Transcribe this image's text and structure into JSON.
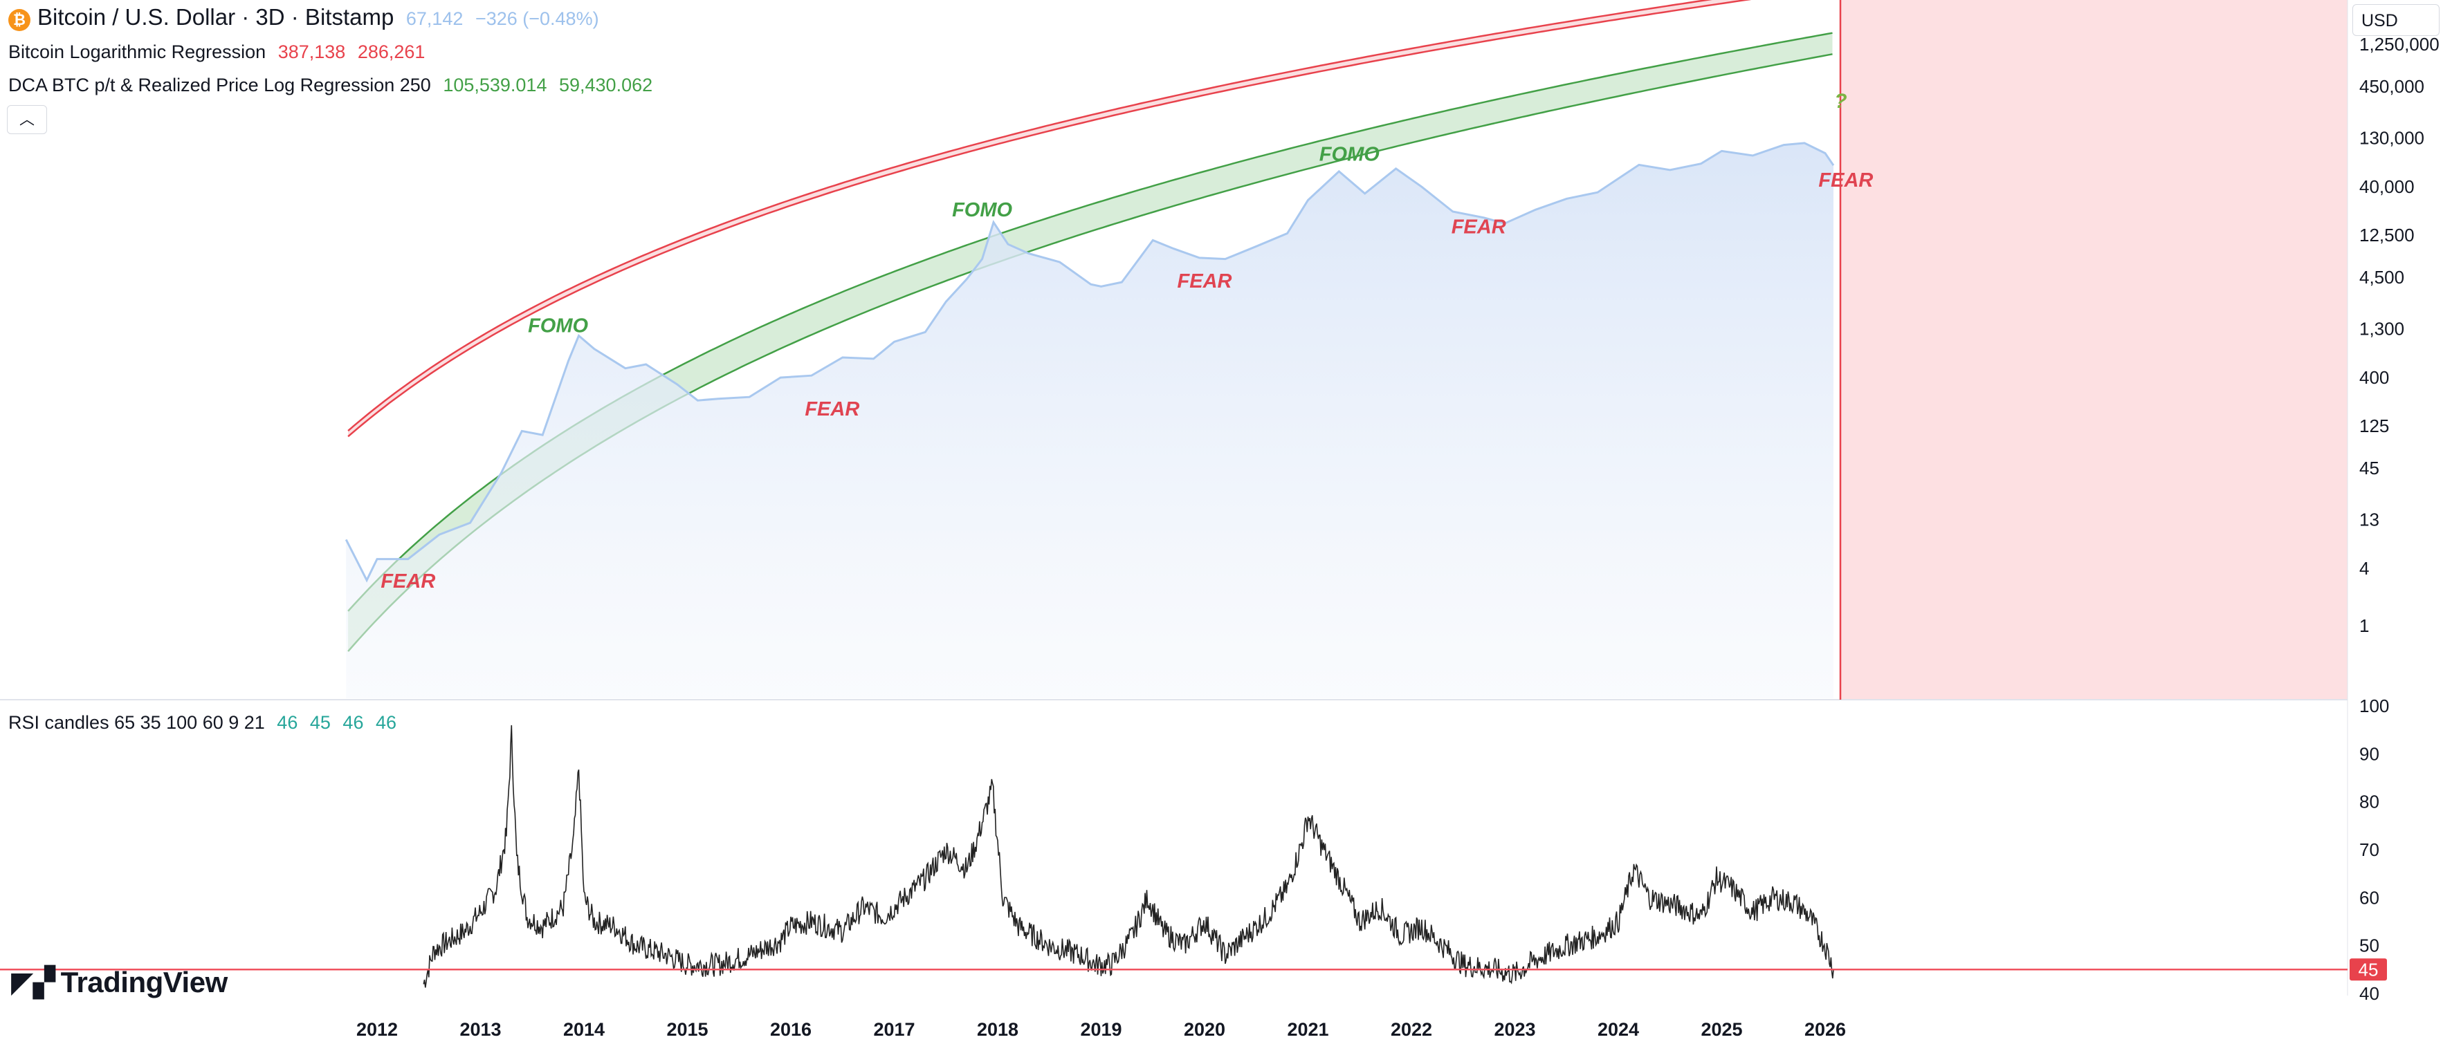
{
  "legend": {
    "title": "Bitcoin / U.S. Dollar · 3D · Bitstamp",
    "price": "67,142",
    "change": "−326 (−0.48%)",
    "indicators": [
      {
        "name": "Bitcoin Logarithmic Regression",
        "values": [
          "387,138",
          "286,261"
        ],
        "color": "#e8424c"
      },
      {
        "name": "DCA BTC p/t & Realized Price Log Regression 250",
        "values": [
          "105,539.014",
          "59,430.062"
        ],
        "color": "#43a047"
      }
    ],
    "rsi": {
      "name": "RSI candles 65 35 100 60 9 21",
      "values": [
        "46",
        "45",
        "46",
        "46"
      ]
    },
    "collapse_icon": "chevron-up-icon"
  },
  "currency_button": "USD",
  "brand": "TradingView",
  "chart_data": [
    {
      "type": "area",
      "title": "Bitcoin / U.S. Dollar · 3D · Bitstamp",
      "scale": "log",
      "y_ticks": [
        "1,250,000",
        "450,000",
        "130,000",
        "40,000",
        "12,500",
        "4,500",
        "1,300",
        "400",
        "125",
        "45",
        "13",
        "4",
        "1"
      ],
      "x_ticks": [
        "2012",
        "2013",
        "2014",
        "2015",
        "2016",
        "2017",
        "2018",
        "2019",
        "2020",
        "2021",
        "2022",
        "2023",
        "2024",
        "2025",
        "2026"
      ],
      "series": [
        {
          "name": "BTC price",
          "x": [
            2011.7,
            2011.9,
            2012.0,
            2012.3,
            2012.6,
            2012.9,
            2013.2,
            2013.4,
            2013.6,
            2013.85,
            2013.95,
            2014.1,
            2014.4,
            2014.6,
            2014.9,
            2015.1,
            2015.3,
            2015.6,
            2015.9,
            2016.2,
            2016.5,
            2016.8,
            2017.0,
            2017.3,
            2017.5,
            2017.7,
            2017.85,
            2017.96,
            2018.1,
            2018.3,
            2018.6,
            2018.9,
            2019.0,
            2019.2,
            2019.5,
            2019.7,
            2019.95,
            2020.2,
            2020.5,
            2020.8,
            2021.0,
            2021.3,
            2021.55,
            2021.85,
            2022.1,
            2022.4,
            2022.7,
            2022.9,
            2023.2,
            2023.5,
            2023.8,
            2024.2,
            2024.5,
            2024.8,
            2025.0,
            2025.3,
            2025.6,
            2025.8,
            2026.0,
            2026.08
          ],
          "values": [
            8,
            3,
            5,
            5,
            9,
            12,
            40,
            110,
            100,
            600,
            1100,
            800,
            500,
            550,
            340,
            230,
            240,
            250,
            400,
            420,
            650,
            630,
            950,
            1200,
            2500,
            4300,
            7000,
            17000,
            10000,
            8000,
            6500,
            3800,
            3600,
            4000,
            11000,
            9000,
            7200,
            7000,
            9500,
            13000,
            29000,
            58000,
            34000,
            62000,
            40000,
            22000,
            19000,
            16500,
            23000,
            30000,
            35000,
            68000,
            60000,
            70000,
            95000,
            85000,
            110000,
            115000,
            90000,
            67142
          ]
        },
        {
          "name": "Bitcoin Logarithmic Regression",
          "values": [
            "387,138",
            "286,261"
          ]
        },
        {
          "name": "DCA BTC p/t & Realized Price Log Regression 250",
          "values": [
            "105,539.014",
            "59,430.062"
          ]
        }
      ],
      "annotations": [
        {
          "text": "FEAR",
          "x": 2012.3,
          "y": 2.5
        },
        {
          "text": "FOMO",
          "x": 2013.75,
          "y": 1200
        },
        {
          "text": "FEAR",
          "x": 2016.4,
          "y": 160
        },
        {
          "text": "FOMO",
          "x": 2017.85,
          "y": 19500
        },
        {
          "text": "FEAR",
          "x": 2020.0,
          "y": 3500
        },
        {
          "text": "FOMO",
          "x": 2021.4,
          "y": 75000
        },
        {
          "text": "FEAR",
          "x": 2022.65,
          "y": 13000
        },
        {
          "text": "?",
          "x": 2026.15,
          "y": 270000
        },
        {
          "text": "FEAR",
          "x": 2026.2,
          "y": 40000
        }
      ]
    },
    {
      "type": "line",
      "title": "RSI candles 65 35 100 60 9 21",
      "ylim": [
        40,
        100
      ],
      "y_ticks": [
        "100",
        "90",
        "80",
        "70",
        "60",
        "50",
        "40"
      ],
      "hline": 45,
      "last_value": "45",
      "series": [
        {
          "name": "RSI",
          "x": [
            2012.45,
            2012.55,
            2012.7,
            2012.85,
            2013.0,
            2013.15,
            2013.25,
            2013.3,
            2013.35,
            2013.45,
            2013.6,
            2013.8,
            2013.9,
            2013.95,
            2014.0,
            2014.1,
            2014.3,
            2014.5,
            2014.8,
            2015.0,
            2015.3,
            2015.6,
            2015.9,
            2016.0,
            2016.2,
            2016.5,
            2016.7,
            2016.9,
            2017.1,
            2017.3,
            2017.5,
            2017.7,
            2017.8,
            2017.95,
            2018.05,
            2018.2,
            2018.5,
            2018.8,
            2018.95,
            2019.1,
            2019.3,
            2019.45,
            2019.6,
            2019.8,
            2020.0,
            2020.2,
            2020.4,
            2020.6,
            2020.8,
            2020.95,
            2021.0,
            2021.15,
            2021.3,
            2021.5,
            2021.7,
            2021.9,
            2022.1,
            2022.3,
            2022.5,
            2022.8,
            2023.0,
            2023.2,
            2023.5,
            2023.8,
            2024.0,
            2024.15,
            2024.3,
            2024.6,
            2024.8,
            2024.95,
            2025.1,
            2025.3,
            2025.5,
            2025.7,
            2025.85,
            2026.0,
            2026.08
          ],
          "values": [
            42,
            49,
            51,
            53,
            57,
            62,
            73,
            94,
            68,
            56,
            54,
            58,
            72,
            87,
            60,
            55,
            54,
            50,
            48,
            46,
            46,
            48,
            51,
            54,
            55,
            53,
            58,
            56,
            60,
            64,
            70,
            66,
            72,
            83,
            60,
            54,
            50,
            48,
            46,
            46,
            52,
            60,
            53,
            50,
            55,
            48,
            52,
            56,
            62,
            72,
            77,
            70,
            64,
            55,
            58,
            52,
            54,
            50,
            46,
            45,
            44,
            47,
            50,
            52,
            55,
            66,
            60,
            58,
            56,
            64,
            62,
            57,
            60,
            59,
            56,
            50,
            45
          ]
        }
      ]
    }
  ]
}
